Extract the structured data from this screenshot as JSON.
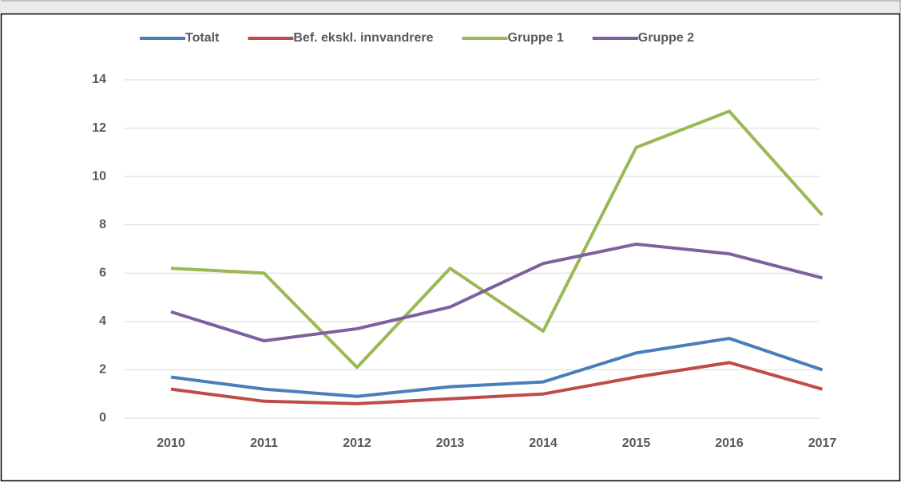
{
  "chart_data": {
    "type": "line",
    "categories": [
      "2010",
      "2011",
      "2012",
      "2013",
      "2014",
      "2015",
      "2016",
      "2017"
    ],
    "series": [
      {
        "name": "Totalt",
        "color": "#4a7ebb",
        "values": [
          1.7,
          1.2,
          0.9,
          1.3,
          1.5,
          2.7,
          3.3,
          2.0
        ]
      },
      {
        "name": "Bef. ekskl. innvandrere",
        "color": "#be4b48",
        "values": [
          1.2,
          0.7,
          0.6,
          0.8,
          1.0,
          1.7,
          2.3,
          1.2
        ]
      },
      {
        "name": "Gruppe 1",
        "color": "#98b954",
        "values": [
          6.2,
          6.0,
          2.1,
          6.2,
          3.6,
          11.2,
          12.7,
          8.4
        ]
      },
      {
        "name": "Gruppe 2",
        "color": "#7d60a0",
        "values": [
          4.4,
          3.2,
          3.7,
          4.6,
          6.4,
          7.2,
          6.8,
          5.8
        ]
      }
    ],
    "ylim": [
      0,
      14
    ],
    "yticks": [
      0,
      2,
      4,
      6,
      8,
      10,
      12,
      14
    ],
    "grid": true,
    "legend": "top"
  }
}
